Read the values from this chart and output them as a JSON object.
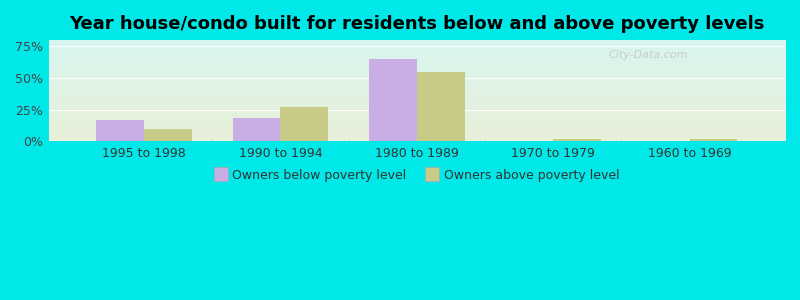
{
  "title": "Year house/condo built for residents below and above poverty levels",
  "categories": [
    "1995 to 1998",
    "1990 to 1994",
    "1980 to 1989",
    "1970 to 1979",
    "1960 to 1969"
  ],
  "below_poverty": [
    17.0,
    18.5,
    65.0,
    0.0,
    0.0
  ],
  "above_poverty": [
    10.0,
    27.0,
    55.0,
    2.0,
    2.0
  ],
  "below_color": "#c9aee5",
  "above_color": "#c8ca88",
  "ylim": [
    0,
    80
  ],
  "yticks": [
    0,
    25,
    50,
    75
  ],
  "ytick_labels": [
    "0%",
    "25%",
    "50%",
    "75%"
  ],
  "bar_width": 0.35,
  "legend_below": "Owners below poverty level",
  "legend_above": "Owners above poverty level",
  "bg_color_top": "#d8f5f0",
  "bg_color_bottom": "#e8f0d8",
  "outer_bg": "#00e8e8",
  "title_fontsize": 13,
  "watermark": "City-Data.com"
}
